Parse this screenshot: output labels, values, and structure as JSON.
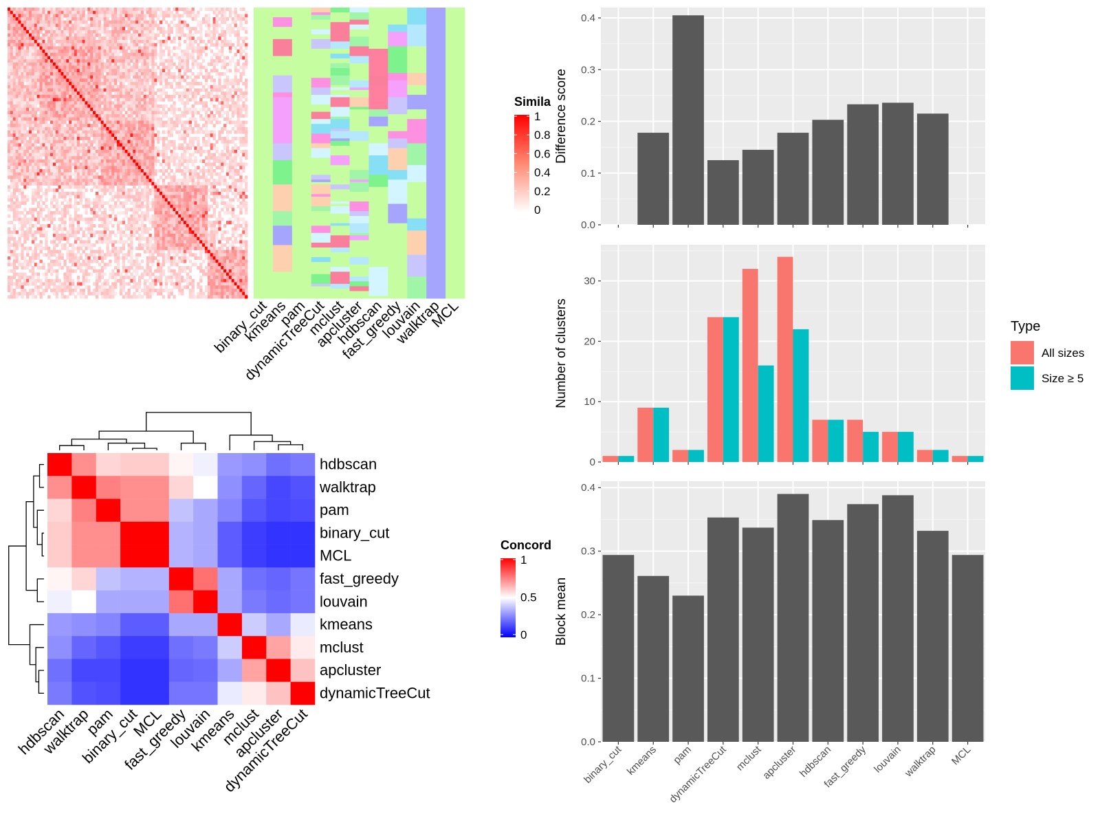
{
  "methods": [
    "binary_cut",
    "kmeans",
    "pam",
    "dynamicTreeCut",
    "mclust",
    "apcluster",
    "hdbscan",
    "fast_greedy",
    "louvain",
    "walktrap",
    "MCL"
  ],
  "similarity_legend": {
    "title": "Simila",
    "ticks": [
      "1",
      "0.8",
      "0.6",
      "0.4",
      "0.2",
      "0"
    ],
    "colors": {
      "high": "#ff0000",
      "low": "#ffffff"
    }
  },
  "concordance_legend": {
    "title": "Concord",
    "ticks": [
      "1",
      "0.5",
      "0"
    ],
    "colors": {
      "high": "#ff0000",
      "mid": "#ffffff",
      "low": "#0000ff"
    }
  },
  "type_legend": {
    "title": "Type",
    "entries": [
      {
        "label": "All sizes",
        "color": "#f8766d"
      },
      {
        "label": "Size ≥ 5",
        "color": "#00bfc4"
      }
    ]
  },
  "chart_data": [
    {
      "type": "heatmap",
      "note": "similarity matrix of terms (~200 x 200), red = similar",
      "legend_title": "Simila",
      "zlim": [
        0,
        1
      ]
    },
    {
      "type": "heatmap",
      "note": "cluster membership per method (categorical colors)",
      "columns": [
        "binary_cut",
        "kmeans",
        "pam",
        "dynamicTreeCut",
        "mclust",
        "apcluster",
        "hdbscan",
        "fast_greedy",
        "louvain",
        "walktrap",
        "MCL"
      ]
    },
    {
      "type": "heatmap",
      "legend_title": "Concord",
      "zlim": [
        0,
        1
      ],
      "rows": [
        "hdbscan",
        "walktrap",
        "pam",
        "binary_cut",
        "MCL",
        "fast_greedy",
        "louvain",
        "kmeans",
        "mclust",
        "apcluster",
        "dynamicTreeCut"
      ],
      "columns": [
        "hdbscan",
        "walktrap",
        "pam",
        "binary_cut",
        "MCL",
        "fast_greedy",
        "louvain",
        "kmeans",
        "mclust",
        "apcluster",
        "dynamicTreeCut"
      ],
      "values": [
        [
          1.0,
          0.72,
          0.58,
          0.6,
          0.6,
          0.52,
          0.47,
          0.3,
          0.28,
          0.22,
          0.24
        ],
        [
          0.72,
          1.0,
          0.75,
          0.72,
          0.72,
          0.58,
          0.5,
          0.28,
          0.2,
          0.14,
          0.16
        ],
        [
          0.58,
          0.75,
          1.0,
          0.72,
          0.72,
          0.38,
          0.33,
          0.26,
          0.17,
          0.14,
          0.15
        ],
        [
          0.6,
          0.72,
          0.72,
          1.0,
          1.0,
          0.35,
          0.33,
          0.18,
          0.12,
          0.1,
          0.1
        ],
        [
          0.6,
          0.72,
          0.72,
          1.0,
          1.0,
          0.35,
          0.33,
          0.18,
          0.12,
          0.1,
          0.1
        ],
        [
          0.52,
          0.58,
          0.38,
          0.35,
          0.35,
          1.0,
          0.78,
          0.33,
          0.22,
          0.2,
          0.23
        ],
        [
          0.47,
          0.5,
          0.33,
          0.33,
          0.33,
          0.78,
          1.0,
          0.33,
          0.24,
          0.21,
          0.23
        ],
        [
          0.3,
          0.28,
          0.26,
          0.18,
          0.18,
          0.33,
          0.33,
          1.0,
          0.4,
          0.33,
          0.46
        ],
        [
          0.28,
          0.2,
          0.17,
          0.12,
          0.12,
          0.22,
          0.24,
          0.4,
          1.0,
          0.68,
          0.54
        ],
        [
          0.22,
          0.14,
          0.14,
          0.1,
          0.1,
          0.2,
          0.21,
          0.33,
          0.68,
          1.0,
          0.62
        ],
        [
          0.24,
          0.16,
          0.15,
          0.1,
          0.1,
          0.23,
          0.23,
          0.46,
          0.54,
          0.62,
          1.0
        ]
      ]
    },
    {
      "type": "bar",
      "categories": [
        "binary_cut",
        "kmeans",
        "pam",
        "dynamicTreeCut",
        "mclust",
        "apcluster",
        "hdbscan",
        "fast_greedy",
        "louvain",
        "walktrap",
        "MCL"
      ],
      "values": [
        0,
        0.178,
        0.405,
        0.125,
        0.145,
        0.178,
        0.203,
        0.233,
        0.236,
        0.215,
        0
      ],
      "ylabel": "Difference score",
      "ylim": [
        0,
        0.42
      ],
      "yticks": [
        "0.0",
        "0.1",
        "0.2",
        "0.3",
        "0.4"
      ],
      "color": "#595959"
    },
    {
      "type": "bar",
      "categories": [
        "binary_cut",
        "kmeans",
        "pam",
        "dynamicTreeCut",
        "mclust",
        "apcluster",
        "hdbscan",
        "fast_greedy",
        "louvain",
        "walktrap",
        "MCL"
      ],
      "series": [
        {
          "name": "All sizes",
          "values": [
            1,
            9,
            2,
            24,
            32,
            34,
            7,
            7,
            5,
            2,
            1
          ],
          "color": "#f8766d"
        },
        {
          "name": "Size ≥ 5",
          "values": [
            1,
            9,
            2,
            24,
            16,
            22,
            7,
            5,
            5,
            2,
            1
          ],
          "color": "#00bfc4"
        }
      ],
      "ylabel": "Number of clusters",
      "ylim": [
        0,
        36
      ],
      "yticks": [
        "0",
        "10",
        "20",
        "30"
      ]
    },
    {
      "type": "bar",
      "categories": [
        "binary_cut",
        "kmeans",
        "pam",
        "dynamicTreeCut",
        "mclust",
        "apcluster",
        "hdbscan",
        "fast_greedy",
        "louvain",
        "walktrap",
        "MCL"
      ],
      "values": [
        0.294,
        0.261,
        0.23,
        0.353,
        0.337,
        0.39,
        0.349,
        0.374,
        0.388,
        0.332,
        0.294
      ],
      "ylabel": "Block mean",
      "ylim": [
        0,
        0.41
      ],
      "yticks": [
        "0.0",
        "0.1",
        "0.2",
        "0.3",
        "0.4"
      ],
      "color": "#595959"
    }
  ]
}
